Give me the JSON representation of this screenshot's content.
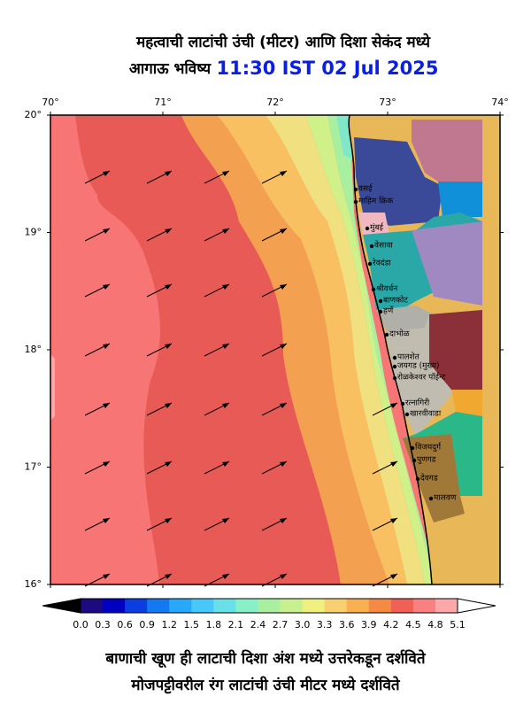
{
  "header": {
    "title": "महत्वाची लाटांची उंची (मीटर) आणि दिशा सेकंद मध्ये",
    "subtitle": "आगाऊ भविष्य",
    "time": "11:30 IST 02 Jul 2025"
  },
  "map": {
    "lon_labels": [
      "70°",
      "71°",
      "72°",
      "73°",
      "74°"
    ],
    "lat_labels": [
      "20°",
      "19°",
      "18°",
      "17°",
      "16°"
    ],
    "places": [
      "वसई",
      "माहिम क्रिक",
      "मुंबई",
      "वेसावा",
      "रेवदंडा",
      "श्रीवर्धन",
      "बाणकोट",
      "हर्णे",
      "दाभोळ",
      "पालशेत",
      "जयगड (मुख्य)",
      "रोळकेश्वर पॉईन्ट",
      "रत्नागिरी",
      "खारवीवाडा",
      "विजयदुर्ग",
      "पुणगड",
      "देवगड",
      "मालवण"
    ]
  },
  "colorbar": {
    "labels": [
      "0.0",
      "0.3",
      "0.6",
      "0.9",
      "1.2",
      "1.5",
      "1.8",
      "2.1",
      "2.4",
      "2.7",
      "3.0",
      "3.3",
      "3.6",
      "3.9",
      "4.2",
      "4.5",
      "4.8",
      "5.1"
    ],
    "colors": [
      "#1c0a80",
      "#0000c0",
      "#0a3ee0",
      "#1478f0",
      "#28a8f8",
      "#48c8f8",
      "#68e0e8",
      "#88f0c8",
      "#a8f0a0",
      "#c8f090",
      "#f0f080",
      "#f8d070",
      "#f8b050",
      "#f58a45",
      "#f06055",
      "#f88080",
      "#fca8a8"
    ]
  },
  "footer": {
    "line1": "बाणाची खूण ही लाटाची दिशा अंश मध्ये उत्तरेकडून दर्शविते",
    "line2": "मोजपट्टीवरील रंग लाटांची उंची मीटर मध्ये दर्शविते"
  }
}
